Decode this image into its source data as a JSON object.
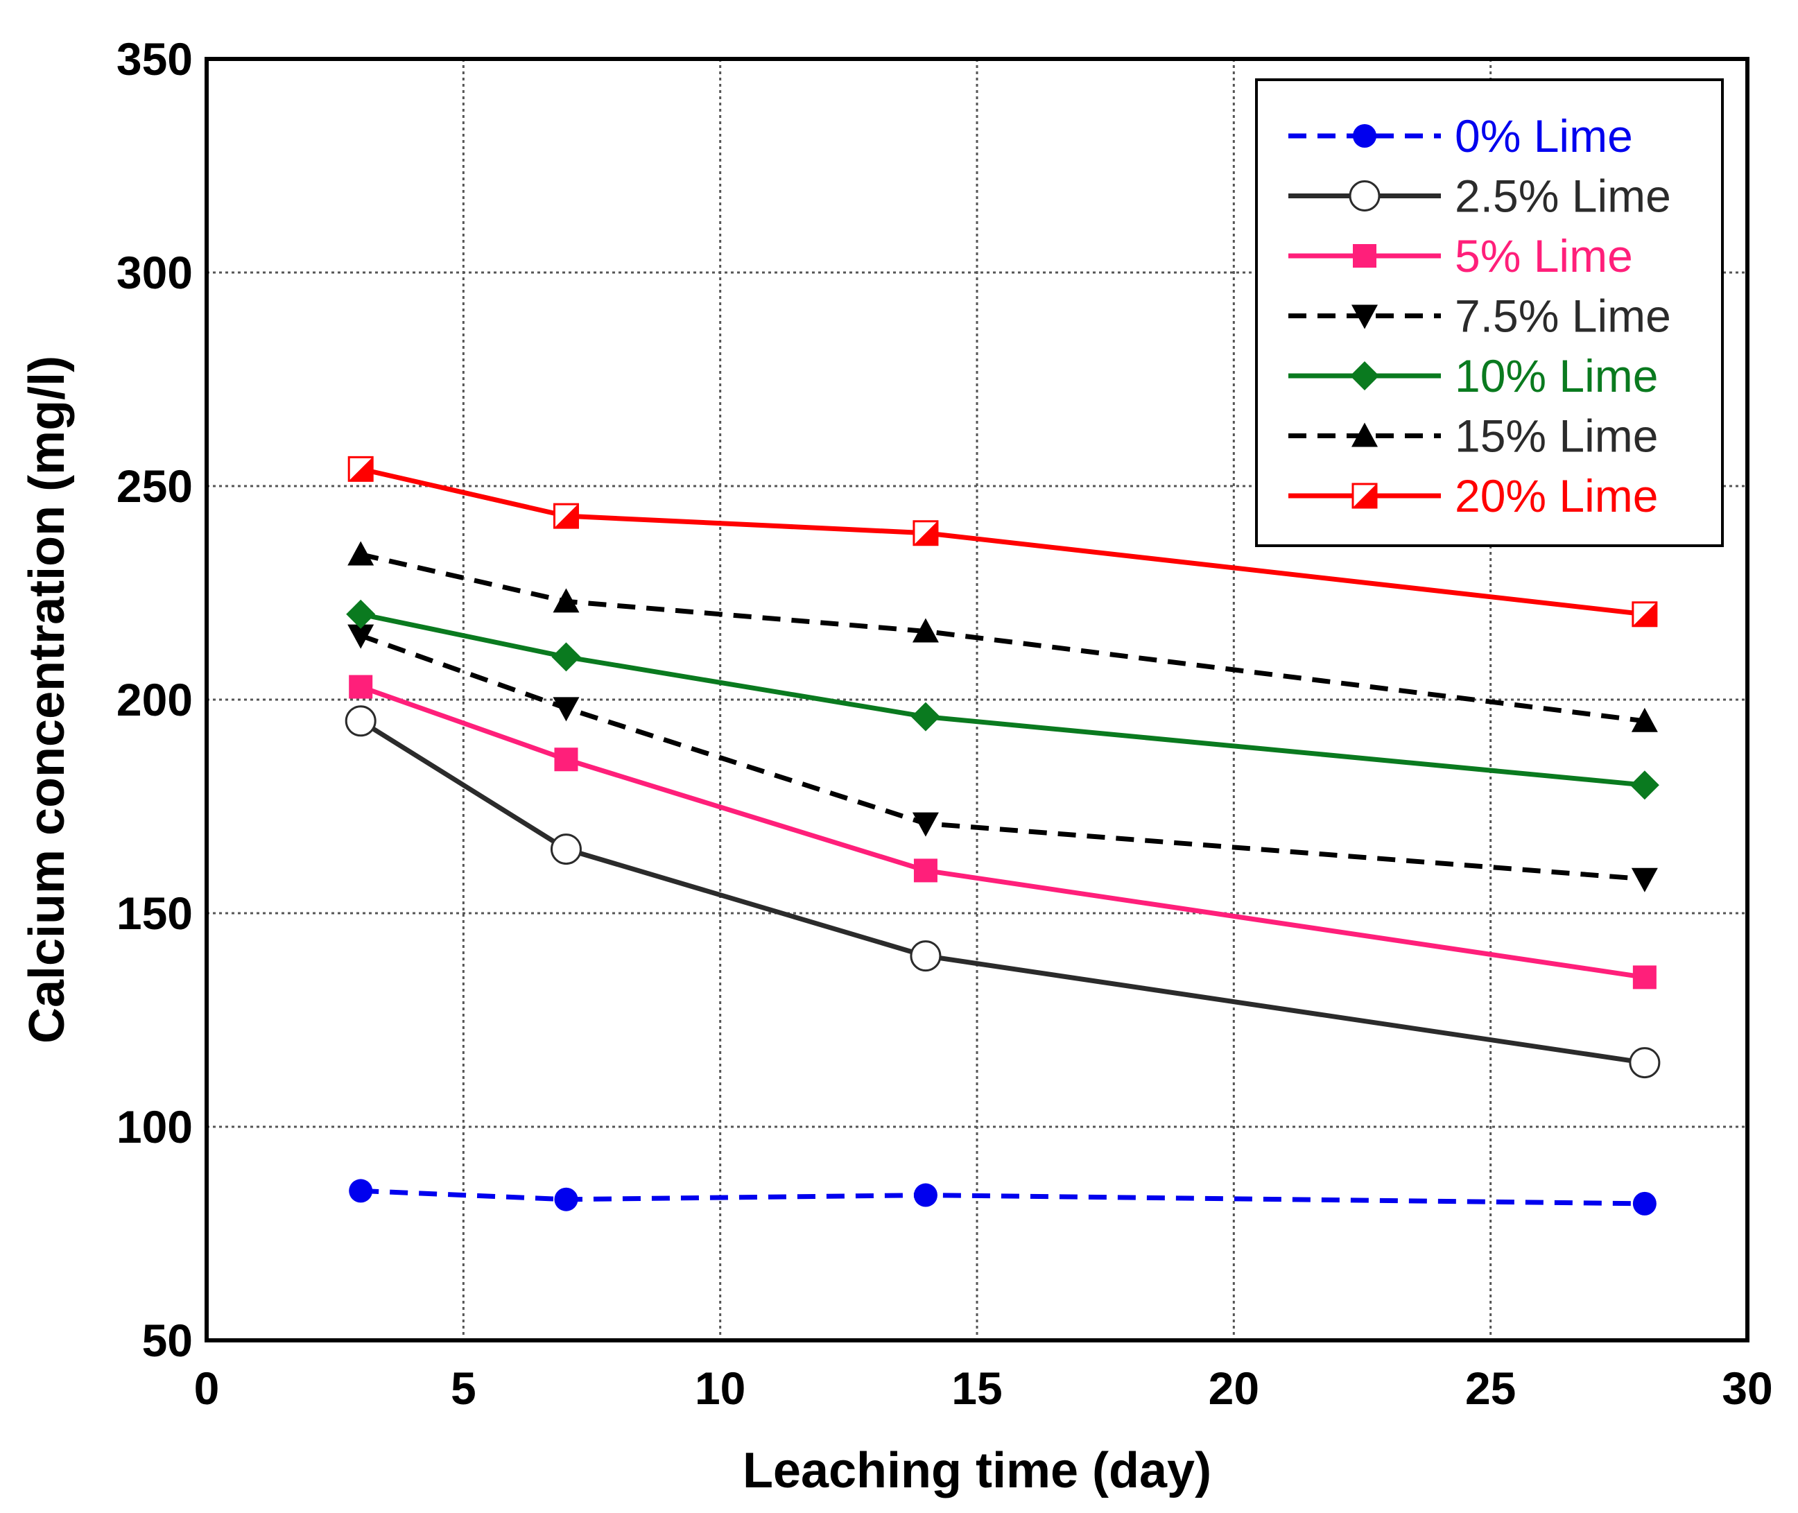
{
  "chart_data": {
    "type": "line",
    "title": "",
    "xlabel": "Leaching time (day)",
    "ylabel": "Calcium concentration (mg/l)",
    "xlim": [
      0,
      30
    ],
    "ylim": [
      50,
      350
    ],
    "xticks": [
      0,
      5,
      10,
      15,
      20,
      25,
      30
    ],
    "yticks": [
      50,
      100,
      150,
      200,
      250,
      300,
      350
    ],
    "grid": true,
    "legend_position": "top-right",
    "x": [
      3,
      7,
      14,
      28
    ],
    "series": [
      {
        "name": "0% Lime",
        "values": [
          85,
          83,
          84,
          82
        ],
        "color": "#0000ee",
        "dash": "dashed",
        "marker": "circle-filled"
      },
      {
        "name": "2.5% Lime",
        "values": [
          195,
          165,
          140,
          115
        ],
        "color": "#2b2b2b",
        "dash": "solid",
        "marker": "circle-open"
      },
      {
        "name": "5% Lime",
        "values": [
          203,
          186,
          160,
          135
        ],
        "color": "#ff1f7a",
        "dash": "solid",
        "marker": "square"
      },
      {
        "name": "7.5% Lime",
        "values": [
          215,
          198,
          171,
          158
        ],
        "color": "#000000",
        "dash": "dashed",
        "marker": "triangle-down"
      },
      {
        "name": "10% Lime",
        "values": [
          220,
          210,
          196,
          180
        ],
        "color": "#0a7a1f",
        "dash": "solid",
        "marker": "diamond"
      },
      {
        "name": "15% Lime",
        "values": [
          234,
          223,
          216,
          195
        ],
        "color": "#000000",
        "dash": "dashed",
        "marker": "triangle-up"
      },
      {
        "name": "20% Lime",
        "values": [
          254,
          243,
          239,
          220
        ],
        "color": "#ff0000",
        "dash": "solid",
        "marker": "half-square"
      }
    ],
    "legend_text_colors": [
      "#0000ee",
      "#2b2b2b",
      "#ff1f7a",
      "#2b2b2b",
      "#0a7a1f",
      "#2b2b2b",
      "#ff0000"
    ]
  }
}
